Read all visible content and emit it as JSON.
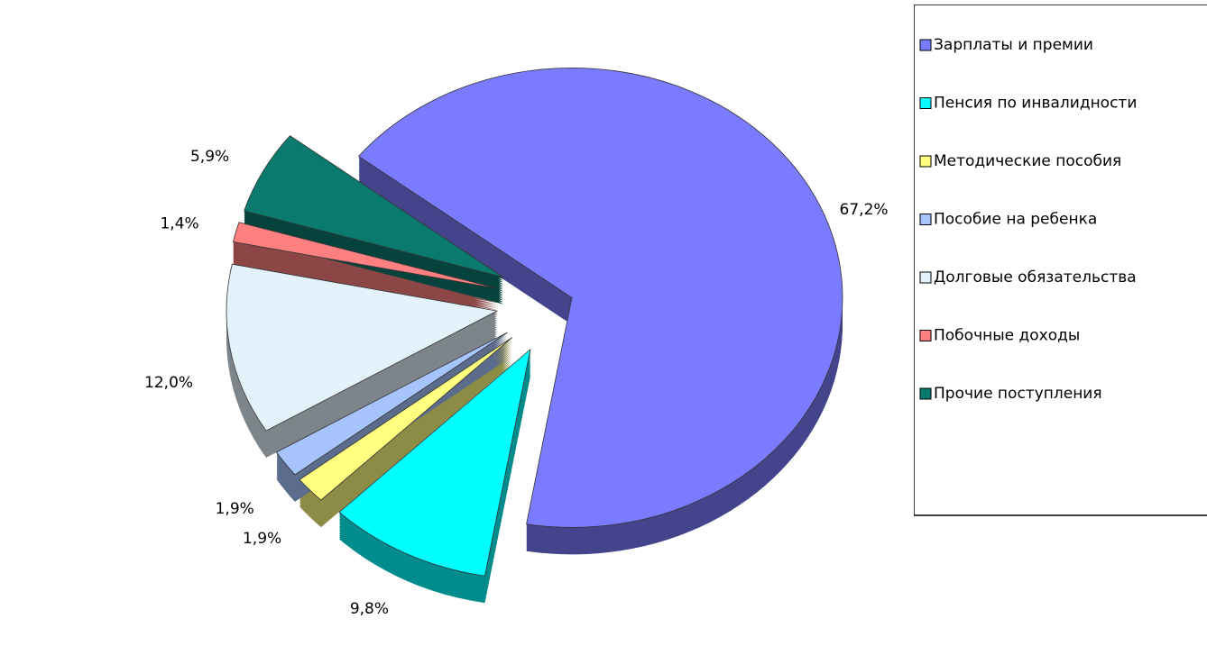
{
  "chart_data": {
    "type": "pie",
    "categories": [
      "Зарплаты и премии",
      "Пенсия по инвалидности",
      "Методические пособия",
      "Пособие на ребенка",
      "Долговые обязательства",
      "Побочные доходы",
      "Прочие поступления"
    ],
    "values": [
      67.2,
      9.8,
      1.9,
      1.9,
      12.0,
      1.4,
      5.9
    ],
    "value_labels": [
      "67,2%",
      "9,8%",
      "1,9%",
      "1,9%",
      "12,0%",
      "1,4%",
      "5,9%"
    ],
    "colors": [
      "#7b7bff",
      "#00ffff",
      "#ffff80",
      "#a8c4ff",
      "#e4f2fb",
      "#ff8080",
      "#0a7a6e"
    ],
    "legend": "right"
  }
}
